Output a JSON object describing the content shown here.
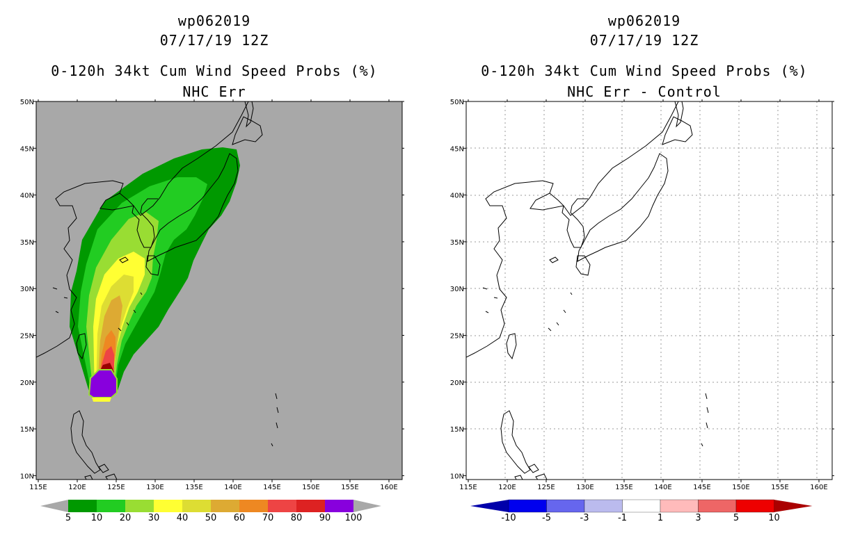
{
  "left_panel": {
    "title_line1": "wp062019",
    "title_line2": "07/17/19 12Z",
    "title_line3": "0-120h 34kt Cum Wind Speed Probs (%)",
    "title_line4": "NHC Err",
    "background_color": "#a8a8a8",
    "colorbar": {
      "labels": [
        "5",
        "10",
        "20",
        "30",
        "40",
        "50",
        "60",
        "70",
        "80",
        "90",
        "100"
      ],
      "colors": [
        "#009900",
        "#22cc22",
        "#99dd33",
        "#ffff33",
        "#dddd33",
        "#ddaa33",
        "#ee8822",
        "#ee4444",
        "#dd2222",
        "#990000",
        "#8800dd"
      ]
    }
  },
  "right_panel": {
    "title_line1": "wp062019",
    "title_line2": "07/17/19 12Z",
    "title_line3": "0-120h 34kt Cum Wind Speed Probs (%)",
    "title_line4": "NHC Err - Control",
    "background_color": "#ffffff",
    "colorbar": {
      "labels": [
        "-10",
        "-5",
        "-3",
        "-1",
        "1",
        "3",
        "5",
        "10"
      ],
      "colors": [
        "#0000aa",
        "#0000ee",
        "#6666ee",
        "#bbbbee",
        "#ffffff",
        "#ffbbbb",
        "#ee6666",
        "#ee0000",
        "#aa0000"
      ]
    }
  },
  "axes": {
    "lon_labels": [
      "115E",
      "120E",
      "125E",
      "130E",
      "135E",
      "140E",
      "145E",
      "150E",
      "155E",
      "160E"
    ],
    "lat_labels": [
      "50N",
      "45N",
      "40N",
      "35N",
      "30N",
      "25N",
      "20N",
      "15N",
      "10N"
    ]
  }
}
